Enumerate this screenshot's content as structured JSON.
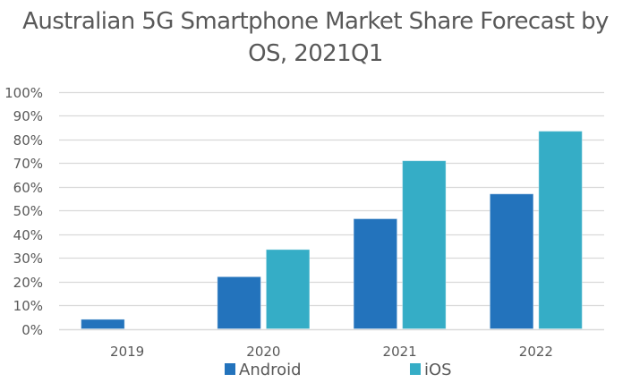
{
  "chart_data": {
    "type": "bar",
    "title_lines": [
      "Australian 5G Smartphone Market Share Forecast by",
      "OS, 2021Q1"
    ],
    "title": "Australian 5G Smartphone Market Share Forecast by OS, 2021Q1",
    "xlabel": "",
    "ylabel": "",
    "categories": [
      "2019",
      "2020",
      "2021",
      "2022"
    ],
    "series": [
      {
        "name": "Android",
        "color": "#2373BC",
        "values": [
          4,
          22,
          46.5,
          57
        ]
      },
      {
        "name": "iOS",
        "color": "#35ADC6",
        "values": [
          0,
          33.5,
          71,
          83.5
        ]
      }
    ],
    "ylim": [
      0,
      100
    ],
    "yticks": [
      0,
      10,
      20,
      30,
      40,
      50,
      60,
      70,
      80,
      90,
      100
    ],
    "ytick_labels": [
      "0%",
      "10%",
      "20%",
      "30%",
      "40%",
      "50%",
      "60%",
      "70%",
      "80%",
      "90%",
      "100%"
    ],
    "grid": true,
    "gridline_color": "#D9D9D9",
    "legend_placement": "bottom"
  }
}
